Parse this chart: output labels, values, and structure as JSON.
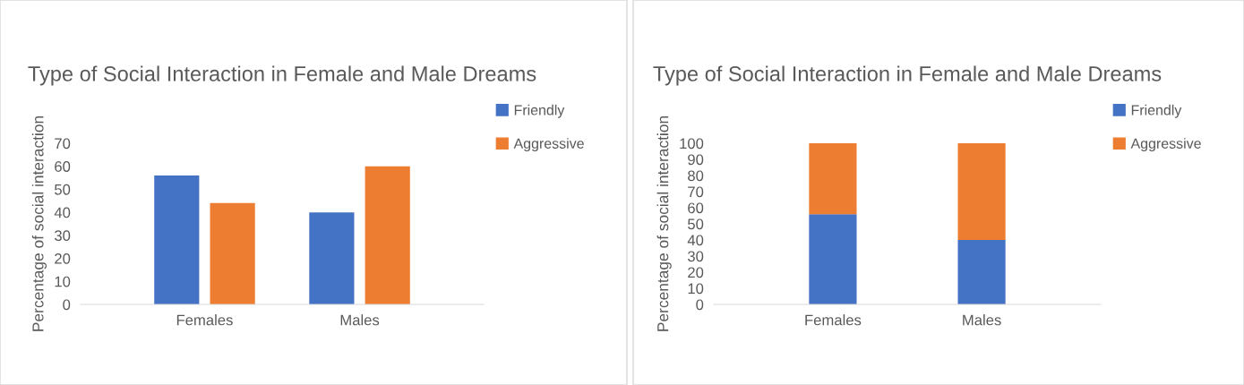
{
  "chart_data": [
    {
      "type": "bar",
      "title": "Type of Social Interaction in Female and Male Dreams",
      "ylabel": "Percentage of social interaction",
      "categories": [
        "Females",
        "Males"
      ],
      "series": [
        {
          "name": "Friendly",
          "color": "#4472c4",
          "values": [
            56,
            40
          ]
        },
        {
          "name": "Aggressive",
          "color": "#ed7d31",
          "values": [
            44,
            60
          ]
        }
      ],
      "ylim": [
        0,
        70
      ],
      "yticks": [
        0,
        10,
        20,
        30,
        40,
        50,
        60,
        70
      ],
      "legend": "top right"
    },
    {
      "type": "bar",
      "stacked": true,
      "title": "Type of Social Interaction in Female and Male Dreams",
      "ylabel": "Percentage of social interaction",
      "categories": [
        "Females",
        "Males"
      ],
      "series": [
        {
          "name": "Friendly",
          "color": "#4472c4",
          "values": [
            56,
            40
          ]
        },
        {
          "name": "Aggressive",
          "color": "#ed7d31",
          "values": [
            44,
            60
          ]
        }
      ],
      "ylim": [
        0,
        100
      ],
      "yticks": [
        0,
        10,
        20,
        30,
        40,
        50,
        60,
        70,
        80,
        90,
        100
      ],
      "legend": "top right"
    }
  ]
}
